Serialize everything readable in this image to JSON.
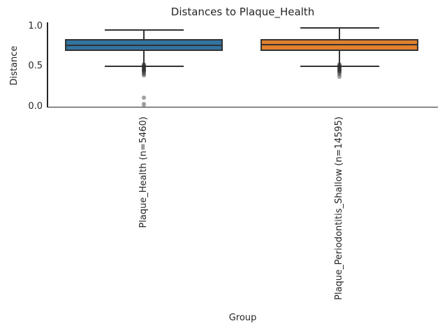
{
  "title": "Distances to Plaque_Health",
  "colors": {
    "line": "#333333",
    "spine": "#262626",
    "text": "#262626",
    "outlier": "rgba(45,45,45,0.45)",
    "series_blue": "#3274a1",
    "series_orange": "#e1812c"
  },
  "chart_data": {
    "type": "box",
    "title": "Distances to Plaque_Health",
    "xlabel": "Group",
    "ylabel": "Distance",
    "ylim": [
      0.0,
      1.05
    ],
    "yticks": [
      0.0,
      0.5,
      1.0
    ],
    "grid": false,
    "legend": false,
    "groups": [
      {
        "label": "Plaque_Health (n=5460)",
        "n": 5460,
        "color": "#3274a1",
        "whisker_low": 0.5,
        "q1": 0.69,
        "median": 0.76,
        "q3": 0.84,
        "whisker_high": 0.955,
        "outliers": [
          0.525,
          0.515,
          0.505,
          0.495,
          0.485,
          0.475,
          0.465,
          0.455,
          0.445,
          0.43,
          0.415,
          0.39,
          0.115,
          0.035
        ]
      },
      {
        "label": "Plaque_Periodontitis_Shallow (n=14595)",
        "n": 14595,
        "color": "#e1812c",
        "whisker_low": 0.5,
        "q1": 0.69,
        "median": 0.77,
        "q3": 0.84,
        "whisker_high": 0.975,
        "outliers": [
          0.525,
          0.515,
          0.505,
          0.495,
          0.485,
          0.475,
          0.465,
          0.455,
          0.445,
          0.43,
          0.415,
          0.38
        ]
      }
    ]
  }
}
